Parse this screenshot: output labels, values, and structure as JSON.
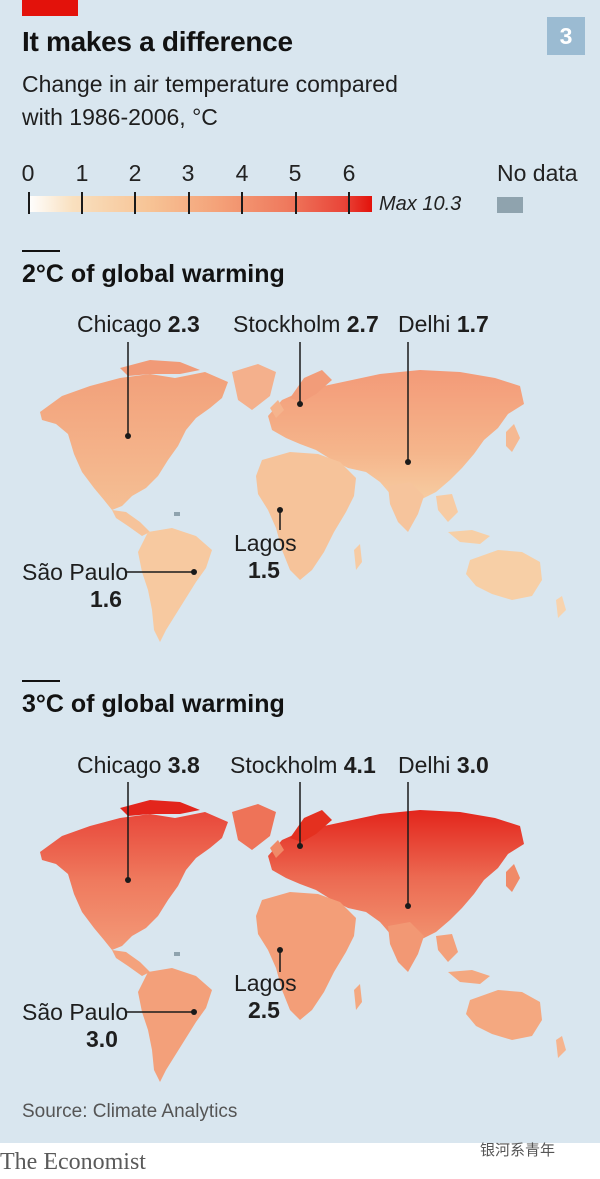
{
  "header": {
    "title": "It makes a difference",
    "subtitle": "Change in air temperature compared with 1986-2006, °C",
    "chart_number": "3"
  },
  "legend": {
    "ticks": [
      "0",
      "1",
      "2",
      "3",
      "4",
      "5",
      "6"
    ],
    "max_label": "Max 10.3",
    "no_data_label": "No data",
    "colors": {
      "low": "#ffffff",
      "mid": "#f4a279",
      "high": "#e3120b",
      "no_data": "#8fa3ae"
    }
  },
  "scenarios": [
    {
      "title": "2°C of global warming",
      "cities": [
        {
          "name": "Chicago",
          "value": "2.3"
        },
        {
          "name": "Stockholm",
          "value": "2.7"
        },
        {
          "name": "Delhi",
          "value": "1.7"
        },
        {
          "name": "Lagos",
          "value": "1.5"
        },
        {
          "name": "São Paulo",
          "value": "1.6"
        }
      ]
    },
    {
      "title": "3°C of global warming",
      "cities": [
        {
          "name": "Chicago",
          "value": "3.8"
        },
        {
          "name": "Stockholm",
          "value": "4.1"
        },
        {
          "name": "Delhi",
          "value": "3.0"
        },
        {
          "name": "Lagos",
          "value": "2.5"
        },
        {
          "name": "São Paulo",
          "value": "3.0"
        }
      ]
    }
  ],
  "footer": {
    "source": "Source: Climate Analytics",
    "brand": "The Economist",
    "watermark": "银河系青年"
  }
}
